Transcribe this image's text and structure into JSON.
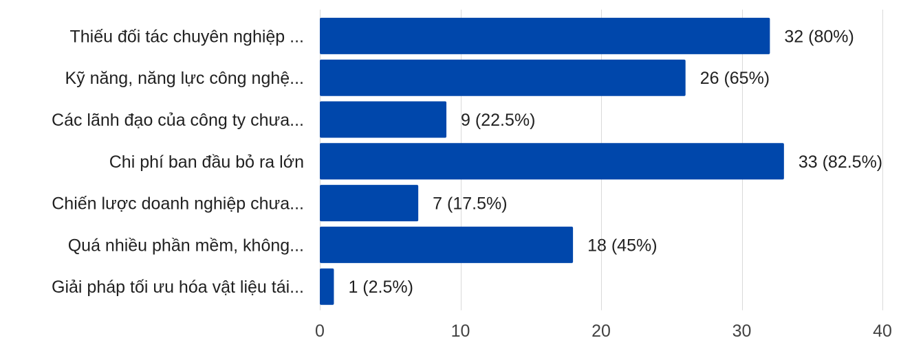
{
  "chart_data": {
    "type": "bar",
    "orientation": "horizontal",
    "categories": [
      "Thiếu đối tác chuyên nghiệp ...",
      "Kỹ năng, năng lực công nghệ...",
      "Các lãnh đạo của công ty chưa...",
      "Chi phí ban đầu bỏ ra lớn",
      "Chiến lược doanh nghiệp chưa...",
      "Quá nhiều phần mềm, không...",
      "Giải pháp tối ưu hóa vật liệu tái..."
    ],
    "values": [
      32,
      26,
      9,
      33,
      7,
      18,
      1
    ],
    "data_labels": [
      "32 (80%)",
      "26 (65%)",
      "9 (22.5%)",
      "33 (82.5%)",
      "7 (17.5%)",
      "18 (45%)",
      "1 (2.5%)"
    ],
    "xlim": [
      0,
      40
    ],
    "x_ticks": [
      0,
      10,
      20,
      30,
      40
    ],
    "grid": true,
    "legend": "none",
    "bar_color": "#0047ab"
  }
}
